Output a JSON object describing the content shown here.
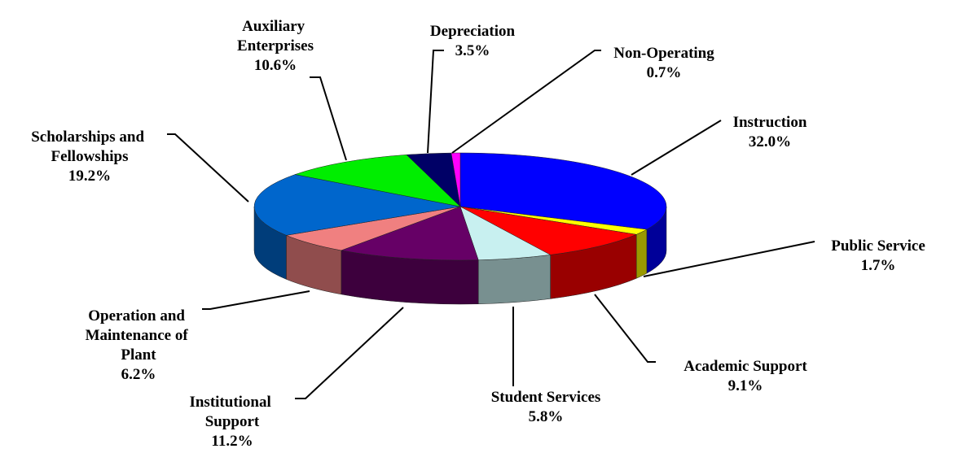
{
  "chart_data": {
    "type": "pie3d",
    "categories": [
      "Instruction",
      "Public Service",
      "Academic Support",
      "Student Services",
      "Institutional Support",
      "Operation and Maintenance of Plant",
      "Scholarships and Fellowships",
      "Auxiliary Enterprises",
      "Depreciation",
      "Non-Operating"
    ],
    "values": [
      32.0,
      1.7,
      9.1,
      5.8,
      11.2,
      6.2,
      19.2,
      10.6,
      3.5,
      0.7
    ],
    "value_labels": [
      "32.0%",
      "1.7%",
      "9.1%",
      "5.8%",
      "11.2%",
      "6.2%",
      "19.2%",
      "10.6%",
      "3.5%",
      "0.7%"
    ],
    "colors": [
      "#0000ff",
      "#ffff00",
      "#ff0000",
      "#c8f0f0",
      "#660066",
      "#f08080",
      "#0066cc",
      "#00ee00",
      "#000066",
      "#ff00ff"
    ]
  }
}
